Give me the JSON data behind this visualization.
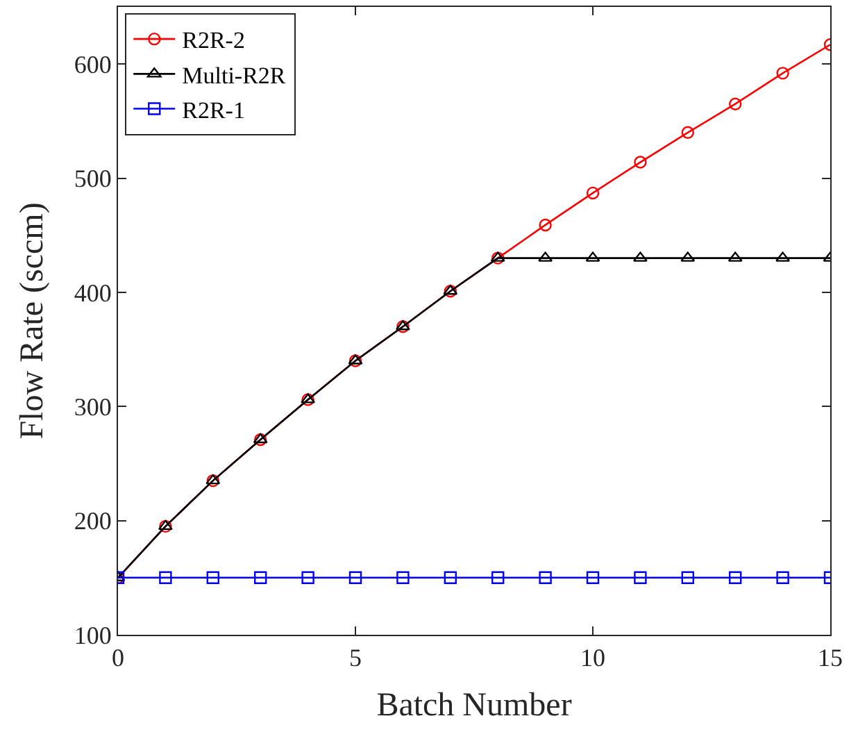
{
  "chart_data": {
    "type": "line",
    "xlabel": "Batch Number",
    "ylabel": "Flow Rate (sccm)",
    "x": [
      0,
      1,
      2,
      3,
      4,
      5,
      6,
      7,
      8,
      9,
      10,
      11,
      12,
      13,
      14,
      15
    ],
    "series": [
      {
        "name": "R2R-2",
        "color": "#ff0000",
        "marker": "circle",
        "values": [
          150,
          195,
          235,
          271,
          306,
          340,
          370,
          401,
          430,
          459,
          487,
          514,
          540,
          565,
          592,
          617
        ]
      },
      {
        "name": "Multi-R2R",
        "color": "#000000",
        "marker": "triangle",
        "values": [
          150,
          195,
          235,
          271,
          306,
          340,
          370,
          401,
          430,
          430,
          430,
          430,
          430,
          430,
          430,
          430
        ]
      },
      {
        "name": "R2R-1",
        "color": "#0000ff",
        "marker": "square",
        "values": [
          150,
          150,
          150,
          150,
          150,
          150,
          150,
          150,
          150,
          150,
          150,
          150,
          150,
          150,
          150,
          150
        ]
      }
    ],
    "xlim": [
      0,
      15
    ],
    "xticks": [
      0,
      5,
      10,
      15
    ],
    "ylim": [
      100,
      650
    ],
    "yticks": [
      100,
      200,
      300,
      400,
      500,
      600
    ],
    "legend": "top left",
    "line_style": "solid"
  }
}
